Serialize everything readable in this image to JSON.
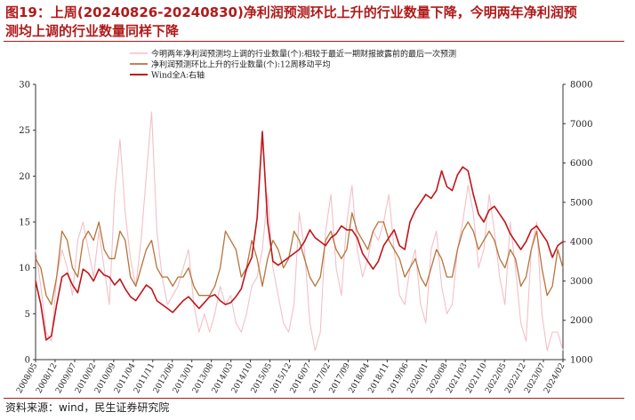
{
  "header": {
    "title_line1": "图19：上周(20240826-20240830)净利润预测环比上升的行业数量下降，今明两年净利润预",
    "title_line2": "测均上调的行业数量同样下降"
  },
  "footer": {
    "source": "资料来源：wind，民生证券研究院"
  },
  "colors": {
    "series_a": "#f2c0c8",
    "series_b": "#b8733a",
    "series_c": "#c0151b",
    "accent": "#b01a1a"
  },
  "chart_data": {
    "type": "line",
    "title": "",
    "xlabel": "",
    "ylabel": "",
    "ylim": [
      0,
      30
    ],
    "y2lim": [
      1000,
      8000
    ],
    "grid": false,
    "legend_position": "top-center",
    "y_ticks": [
      0,
      5,
      10,
      15,
      20,
      25,
      30
    ],
    "y2_ticks": [
      1000,
      2000,
      3000,
      4000,
      5000,
      6000,
      7000,
      8000
    ],
    "x_ticks": [
      "2008/05",
      "2008/12",
      "2009/07",
      "2010/02",
      "2010/09",
      "2011/04",
      "2011/11",
      "2012/06",
      "2013/01",
      "2013/08",
      "2014/03",
      "2014/10",
      "2015/05",
      "2015/12",
      "2016/07",
      "2017/02",
      "2017/09",
      "2018/04",
      "2018/11",
      "2019/06",
      "2020/01",
      "2020/08",
      "2021/03",
      "2021/10",
      "2022/05",
      "2022/12",
      "2023/07",
      "2024/02"
    ],
    "series": [
      {
        "name": "今明两年净利润预测均上调的行业数量(个):相较于最近一期财报披露前的最后一次预测",
        "axis": "left",
        "values": [
          12,
          8,
          3,
          2,
          9,
          12,
          10,
          7,
          13,
          15,
          12,
          9,
          14,
          10,
          6,
          18,
          24,
          16,
          11,
          8,
          13,
          20,
          27,
          14,
          9,
          6,
          7,
          8,
          10,
          12,
          6,
          3,
          5,
          3,
          5,
          8,
          6,
          7,
          4,
          3,
          5,
          8,
          9,
          12,
          18,
          10,
          7,
          4,
          3,
          6,
          16,
          12,
          4,
          1,
          3,
          14,
          18,
          10,
          7,
          15,
          19,
          12,
          9,
          11,
          14,
          13,
          15,
          18,
          12,
          7,
          6,
          10,
          12,
          6,
          4,
          12,
          14,
          8,
          5,
          6,
          12,
          15,
          19,
          16,
          10,
          12,
          18,
          14,
          9,
          6,
          15,
          10,
          4,
          2,
          12,
          15,
          5,
          1,
          3,
          3,
          1
        ]
      },
      {
        "name": "净利润预测环比上升的行业数量(个):12周移动平均",
        "axis": "left",
        "values": [
          11,
          10,
          7,
          6,
          9,
          14,
          13,
          10,
          9,
          13,
          14,
          13,
          15,
          12,
          11,
          11,
          14,
          13,
          9,
          8,
          10,
          12,
          13,
          10,
          9,
          9,
          8,
          9,
          9,
          10,
          8,
          7,
          7,
          7,
          8,
          10,
          14,
          13,
          12,
          9,
          10,
          13,
          11,
          8,
          11,
          13,
          12,
          10,
          11,
          14,
          13,
          11,
          9,
          8,
          9,
          13,
          14,
          12,
          11,
          12,
          16,
          14,
          13,
          12,
          14,
          15,
          15,
          13,
          12,
          11,
          9,
          10,
          11,
          9,
          8,
          10,
          12,
          11,
          9,
          9,
          12,
          14,
          15,
          14,
          12,
          13,
          14,
          13,
          11,
          10,
          12,
          11,
          8,
          9,
          12,
          14,
          10,
          7,
          8,
          12,
          10
        ]
      },
      {
        "name": "Wind全A:右轴",
        "axis": "right",
        "values": [
          3000,
          2400,
          1500,
          1600,
          2400,
          3100,
          3200,
          2900,
          2700,
          3300,
          3200,
          3000,
          3300,
          3150,
          3100,
          2900,
          3050,
          2800,
          2600,
          2500,
          2700,
          2900,
          2800,
          2500,
          2400,
          2300,
          2200,
          2350,
          2500,
          2600,
          2450,
          2300,
          2450,
          2600,
          2650,
          2500,
          2400,
          2450,
          2600,
          2800,
          3300,
          3600,
          4600,
          6800,
          4500,
          3500,
          3400,
          3500,
          3600,
          3700,
          3800,
          4000,
          4300,
          4100,
          4000,
          3900,
          4100,
          4200,
          4400,
          4300,
          4300,
          4100,
          3700,
          3500,
          3300,
          3500,
          3900,
          4100,
          4300,
          3900,
          3800,
          4500,
          4800,
          5000,
          5200,
          5100,
          5300,
          5800,
          5400,
          5300,
          5700,
          5900,
          5800,
          5200,
          4700,
          4500,
          4800,
          4900,
          4700,
          4500,
          4200,
          4000,
          3800,
          4000,
          4300,
          4400,
          4200,
          4000,
          3600,
          3900,
          4000
        ]
      }
    ]
  }
}
